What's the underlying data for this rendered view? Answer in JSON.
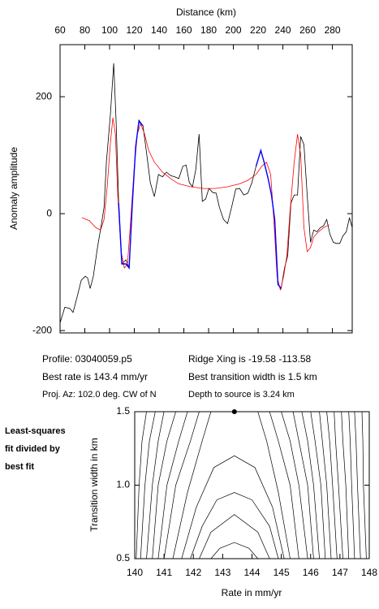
{
  "chart_data": [
    {
      "type": "line",
      "x_label": "Distance (km)",
      "y_label": "Anomaly amplitude",
      "xlim": [
        60,
        296
      ],
      "ylim": [
        -204,
        289
      ],
      "xticks": [
        60,
        80,
        100,
        120,
        140,
        160,
        180,
        200,
        220,
        240,
        260,
        280
      ],
      "yticks": [
        -200,
        0,
        200
      ],
      "series": [
        {
          "color": "#000000",
          "x": [
            60,
            63.9,
            67.9,
            70.5,
            73.8,
            77.1,
            80.4,
            82.3,
            84.3,
            86.9,
            90.2,
            93.5,
            95.5,
            97.4,
            100.7,
            103.3,
            105.3,
            107.3,
            109.9,
            113.2,
            115.8,
            118.4,
            121.1,
            123.7,
            127,
            129.6,
            132.9,
            136.2,
            139.5,
            142.7,
            146,
            149.3,
            152.6,
            155.9,
            159.2,
            161.8,
            164.4,
            167,
            169.7,
            172.3,
            174.9,
            177.6,
            180.2,
            183.5,
            186.1,
            188.7,
            192,
            195.3,
            198.6,
            201.9,
            205.1,
            208.4,
            211.7,
            215,
            218.3,
            222.2,
            224.8,
            228.1,
            230.8,
            233.4,
            236,
            238.6,
            241.3,
            243.9,
            246.5,
            249.1,
            251.8,
            254.4,
            257,
            259.6,
            262.3,
            264.9,
            267.5,
            270.2,
            272.8,
            275.4,
            278,
            280.7,
            283.3,
            285.9,
            288.5,
            291.2,
            293.8,
            296
          ],
          "values": [
            -187,
            -160,
            -162,
            -169,
            -142,
            -114,
            -107,
            -110,
            -128,
            -107,
            -58,
            -17,
            11,
            88,
            171,
            257,
            157,
            18,
            -86,
            -79,
            -93,
            18,
            115,
            160,
            150,
            108,
            53,
            29,
            67,
            63,
            71,
            65,
            63,
            60,
            81,
            83,
            53,
            46,
            76,
            136,
            21,
            25,
            43,
            36,
            35,
            11,
            -10,
            -17,
            11,
            42,
            43,
            32,
            35,
            53,
            81,
            108,
            88,
            60,
            32,
            -10,
            -121,
            -128,
            -93,
            -72,
            18,
            32,
            32,
            132,
            118,
            32,
            -49,
            -28,
            -31,
            -24,
            -21,
            -10,
            -35,
            -49,
            -51,
            -51,
            -38,
            -31,
            -7,
            -24
          ]
        },
        {
          "color": "#ff0000",
          "x": [
            77.7,
            83.6,
            88.9,
            92.8,
            95.5,
            98.1,
            100.7,
            102.7,
            104.7,
            106.6,
            109.3,
            111.9,
            114.5,
            117.1,
            119.8,
            122.4,
            125,
            128.3,
            131.6,
            136.2,
            142.7,
            149.3,
            155.9,
            165.7,
            175.6,
            185.4,
            195.3,
            205.1,
            211.7,
            218.3,
            222.9,
            226.8,
            230.1,
            232.7,
            235.3,
            238,
            240.6,
            243.2,
            245.8,
            249.1,
            251.8,
            254.4,
            257,
            259.6,
            262.3,
            264.9,
            268.8,
            272.8,
            277.4
          ],
          "values": [
            -7,
            -12,
            -24,
            -28,
            -10,
            46,
            122,
            164,
            136,
            32,
            -65,
            -93,
            -86,
            -10,
            74,
            136,
            154,
            136,
            108,
            88,
            71,
            60,
            51,
            46,
            43,
            43,
            46,
            51,
            57,
            67,
            81,
            88,
            67,
            -10,
            -107,
            -131,
            -107,
            -72,
            4,
            88,
            136,
            101,
            -24,
            -65,
            -58,
            -40,
            -31,
            -24,
            -19
          ]
        },
        {
          "color": "#0000ff",
          "x": [
            107.3,
            109.9,
            113.2,
            115.8,
            118.4,
            121.1,
            123.7,
            127,
            null,
            218.3,
            222.2,
            224.8,
            228.1,
            230.8,
            233.4,
            236,
            238.6
          ],
          "values": [
            18,
            -86,
            -86,
            -93,
            18,
            115,
            158,
            150,
            null,
            81,
            108,
            88,
            60,
            32,
            -10,
            -121,
            -128
          ]
        }
      ],
      "info": [
        "Profile: 03040059.p5",
        "Best rate is 143.4 mm/yr",
        "Proj. Az: 102.0 deg. CW of N",
        "Ridge Xing is -19.58 -113.58",
        "Best transition width is 1.5 km",
        "Depth to source is   3.24 km"
      ]
    },
    {
      "type": "contour",
      "note": [
        "Least-squares",
        "fit divided by",
        "best fit"
      ],
      "x_label": "Rate in mm/yr",
      "y_label": "Transition width in km",
      "xlim": [
        140,
        148
      ],
      "ylim": [
        0.5,
        1.5
      ],
      "xticks": [
        140,
        141,
        142,
        143,
        144,
        145,
        146,
        147,
        148
      ],
      "yticks": [
        0.5,
        {
          "value": 1,
          "label": "1.0"
        },
        1.5
      ],
      "color": "#000000",
      "best_fit": {
        "rate": 143.4,
        "width": 1.5
      },
      "contours": [
        {
          "rate": [
            142.6,
            142.9,
            143.4,
            143.9,
            144.2
          ],
          "width": [
            0.5,
            0.57,
            0.61,
            0.57,
            0.5
          ]
        },
        {
          "rate": [
            142.2,
            142.6,
            143.4,
            144.2,
            144.6
          ],
          "width": [
            0.5,
            0.68,
            0.8,
            0.68,
            0.5
          ]
        },
        {
          "rate": [
            141.9,
            142.3,
            142.8,
            143.4,
            144,
            144.6,
            144.9
          ],
          "width": [
            0.5,
            0.72,
            0.9,
            0.95,
            0.9,
            0.72,
            0.5
          ]
        },
        {
          "rate": [
            141.6,
            142.1,
            142.7,
            143.4,
            144.1,
            144.7,
            145.1
          ],
          "width": [
            0.5,
            0.85,
            1.12,
            1.2,
            1.12,
            0.85,
            0.5
          ]
        },
        {
          "rate": [
            141.3,
            141.8,
            142.3,
            142.6
          ],
          "width": [
            0.5,
            0.95,
            1.3,
            1.5
          ]
        },
        {
          "rate": [
            145.3,
            144.9,
            144.5,
            144.2
          ],
          "width": [
            0.5,
            0.95,
            1.3,
            1.5
          ]
        },
        {
          "rate": [
            141.0,
            141.4,
            141.9,
            142.2
          ],
          "width": [
            0.5,
            1.0,
            1.3,
            1.5
          ]
        },
        {
          "rate": [
            145.6,
            145.3,
            144.9,
            144.6
          ],
          "width": [
            0.5,
            1.0,
            1.3,
            1.5
          ]
        },
        {
          "rate": [
            140.8,
            141.1,
            141.5,
            141.8
          ],
          "width": [
            0.5,
            1.0,
            1.3,
            1.5
          ]
        },
        {
          "rate": [
            140.6,
            140.8,
            141.1,
            141.4
          ],
          "width": [
            0.5,
            1.0,
            1.3,
            1.5
          ]
        },
        {
          "rate": [
            140.4,
            140.6,
            140.8,
            141.0
          ],
          "width": [
            0.5,
            1.0,
            1.3,
            1.5
          ]
        },
        {
          "rate": [
            140.2,
            140.35,
            140.5,
            140.7
          ],
          "width": [
            0.5,
            1.0,
            1.3,
            1.5
          ]
        },
        {
          "rate": [
            140.05,
            140.15,
            140.25,
            140.4
          ],
          "width": [
            0.5,
            1.0,
            1.3,
            1.5
          ]
        },
        {
          "rate": [
            145.9,
            145.6,
            145.3,
            145.0
          ],
          "width": [
            0.5,
            1.0,
            1.3,
            1.5
          ]
        },
        {
          "rate": [
            146.1,
            145.9,
            145.6,
            145.4
          ],
          "width": [
            0.5,
            1.0,
            1.3,
            1.5
          ]
        },
        {
          "rate": [
            146.3,
            146.1,
            145.9,
            145.7
          ],
          "width": [
            0.5,
            1.0,
            1.3,
            1.5
          ]
        },
        {
          "rate": [
            146.5,
            146.35,
            146.15,
            146.0
          ],
          "width": [
            0.5,
            1.0,
            1.3,
            1.5
          ]
        },
        {
          "rate": [
            146.7,
            146.55,
            146.4,
            146.3
          ],
          "width": [
            0.5,
            1.0,
            1.3,
            1.5
          ]
        },
        {
          "rate": [
            146.9,
            146.75,
            146.65,
            146.55
          ],
          "width": [
            0.5,
            1.0,
            1.3,
            1.5
          ]
        },
        {
          "rate": [
            147.1,
            146.95,
            146.85,
            146.8
          ],
          "width": [
            0.5,
            1.0,
            1.3,
            1.5
          ]
        },
        {
          "rate": [
            147.3,
            147.2,
            147.1,
            147.05
          ],
          "width": [
            0.5,
            1.0,
            1.3,
            1.5
          ]
        },
        {
          "rate": [
            147.5,
            147.4,
            147.35,
            147.3
          ],
          "width": [
            0.5,
            1.0,
            1.3,
            1.5
          ]
        },
        {
          "rate": [
            147.7,
            147.6,
            147.55,
            147.5
          ],
          "width": [
            0.5,
            1.0,
            1.3,
            1.5
          ]
        },
        {
          "rate": [
            147.9,
            147.8,
            147.78,
            147.75
          ],
          "width": [
            0.5,
            1.0,
            1.3,
            1.5
          ]
        }
      ]
    }
  ]
}
